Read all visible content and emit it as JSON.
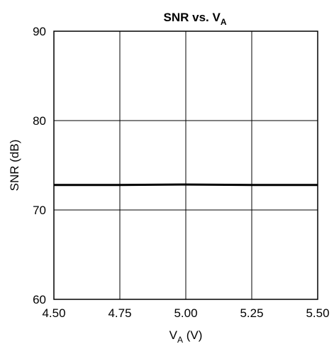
{
  "chart_data": {
    "type": "line",
    "title": {
      "main": "SNR vs. V",
      "sub": "A"
    },
    "xlabel": {
      "main": "V",
      "sub": "A",
      "suffix": " (V)"
    },
    "ylabel": "SNR (dB)",
    "xlim": [
      4.5,
      5.5
    ],
    "ylim": [
      60,
      90
    ],
    "x_ticks": [
      "4.50",
      "4.75",
      "5.00",
      "5.25",
      "5.50"
    ],
    "y_ticks": [
      "60",
      "70",
      "80",
      "90"
    ],
    "grid": true,
    "series": [
      {
        "x": [
          4.5,
          4.75,
          5.0,
          5.25,
          5.5
        ],
        "y": [
          72.8,
          72.8,
          72.85,
          72.8,
          72.8
        ],
        "color": "#000000"
      }
    ]
  }
}
